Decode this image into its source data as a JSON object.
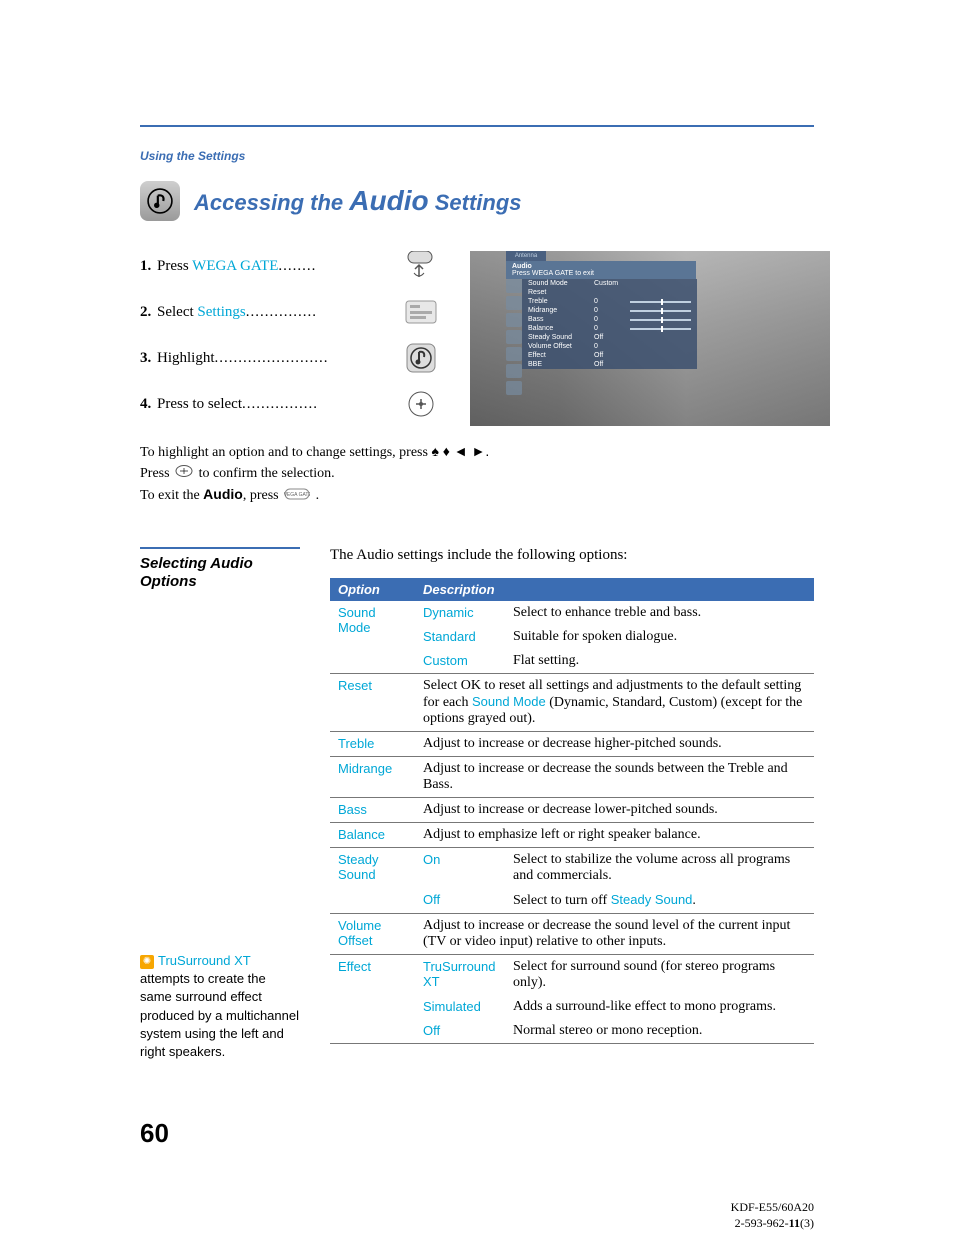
{
  "colors": {
    "blue": "#3b6db3",
    "cyan": "#00a7d6",
    "orange": "#f7a600"
  },
  "section_label": "Using the Settings",
  "heading": {
    "pre": "Accessing the ",
    "big": "Audio",
    "post": " Settings"
  },
  "steps": [
    {
      "num": "1.",
      "pre": "Press ",
      "link": "WEGA GATE",
      "dots": "........"
    },
    {
      "num": "2.",
      "pre": "Select ",
      "link": "Settings",
      "dots": "..............."
    },
    {
      "num": "3.",
      "pre": "Highlight",
      "link": "",
      "dots": "........................"
    },
    {
      "num": "4.",
      "pre": "Press to select",
      "link": "",
      "dots": "................"
    }
  ],
  "osd": {
    "tab": "Antenna",
    "title": "Audio",
    "subtitle": "Press WEGA GATE to exit",
    "rows": [
      {
        "label": "Sound Mode",
        "value": "Custom",
        "slider": false
      },
      {
        "label": "Reset",
        "value": "",
        "slider": false
      },
      {
        "label": "Treble",
        "value": "0",
        "slider": true
      },
      {
        "label": "Midrange",
        "value": "0",
        "slider": true
      },
      {
        "label": "Bass",
        "value": "0",
        "slider": true
      },
      {
        "label": "Balance",
        "value": "0",
        "slider": true
      },
      {
        "label": "Steady Sound",
        "value": "Off",
        "slider": false
      },
      {
        "label": "Volume Offset",
        "value": "0",
        "slider": false
      },
      {
        "label": "Effect",
        "value": "Off",
        "slider": false
      },
      {
        "label": "BBE",
        "value": "Off",
        "slider": false
      }
    ]
  },
  "instructions": {
    "line1_pre": "To highlight an option and to change settings, press ",
    "line1_arrows": "✦ ✦ ✦ ✦.",
    "line2_pre": "Press ",
    "line2_post": " to confirm the selection.",
    "line3_pre": "To exit the ",
    "line3_bold": "Audio",
    "line3_mid": ", press ",
    "line3_post": "."
  },
  "side": {
    "heading": "Selecting Audio Options",
    "tip_title": "TruSurround XT",
    "tip_body": " attempts to create the same surround effect produced by a multichannel system using the left and right speakers."
  },
  "intro": "The Audio settings include the following options:",
  "table": {
    "head_option": "Option",
    "head_desc": "Description",
    "rows": [
      {
        "opt": "Sound Mode",
        "sub": "Dynamic",
        "desc": "Select to enhance treble and bass.",
        "opt_rowspan": 3
      },
      {
        "opt": "",
        "sub": "Standard",
        "desc": "Suitable for spoken dialogue."
      },
      {
        "opt": "",
        "sub": "Custom",
        "desc": "Flat setting."
      },
      {
        "opt": "Reset",
        "sub": "",
        "desc_html": "Select OK to reset all settings and adjustments to the default setting for each <span class=\"cyan\">Sound Mode</span> (Dynamic, Standard, Custom) (except for the options grayed out).",
        "span2": true
      },
      {
        "opt": "Treble",
        "sub": "",
        "desc": "Adjust to increase or decrease higher-pitched sounds.",
        "span2": true
      },
      {
        "opt": "Midrange",
        "sub": "",
        "desc": "Adjust to increase or decrease the sounds between the Treble and Bass.",
        "span2": true
      },
      {
        "opt": "Bass",
        "sub": "",
        "desc": "Adjust to increase or decrease lower-pitched sounds.",
        "span2": true
      },
      {
        "opt": "Balance",
        "sub": "",
        "desc": "Adjust to emphasize left or right speaker balance.",
        "span2": true
      },
      {
        "opt": "Steady Sound",
        "sub": "On",
        "desc": "Select to stabilize the volume across all programs and commercials.",
        "opt_rowspan": 2
      },
      {
        "opt": "",
        "sub": "Off",
        "desc_html": "Select to turn off <span class=\"cyan\">Steady Sound</span>."
      },
      {
        "opt": "Volume Offset",
        "sub": "",
        "desc": "Adjust to increase or decrease the sound level of the current input (TV or video input) relative to other inputs.",
        "span2": true
      },
      {
        "opt": "Effect",
        "sub": "TruSurround XT",
        "desc": "Select for surround sound (for stereo programs only).",
        "opt_rowspan": 3
      },
      {
        "opt": "",
        "sub": "Simulated",
        "desc": "Adds a surround-like effect to mono programs."
      },
      {
        "opt": "",
        "sub": "Off",
        "desc": "Normal stereo or mono reception."
      }
    ]
  },
  "page_num": "60",
  "footer": {
    "model": "KDF-E55/60A20",
    "doc_pre": "2-593-962-",
    "doc_bold": "11",
    "doc_post": "(3)"
  }
}
